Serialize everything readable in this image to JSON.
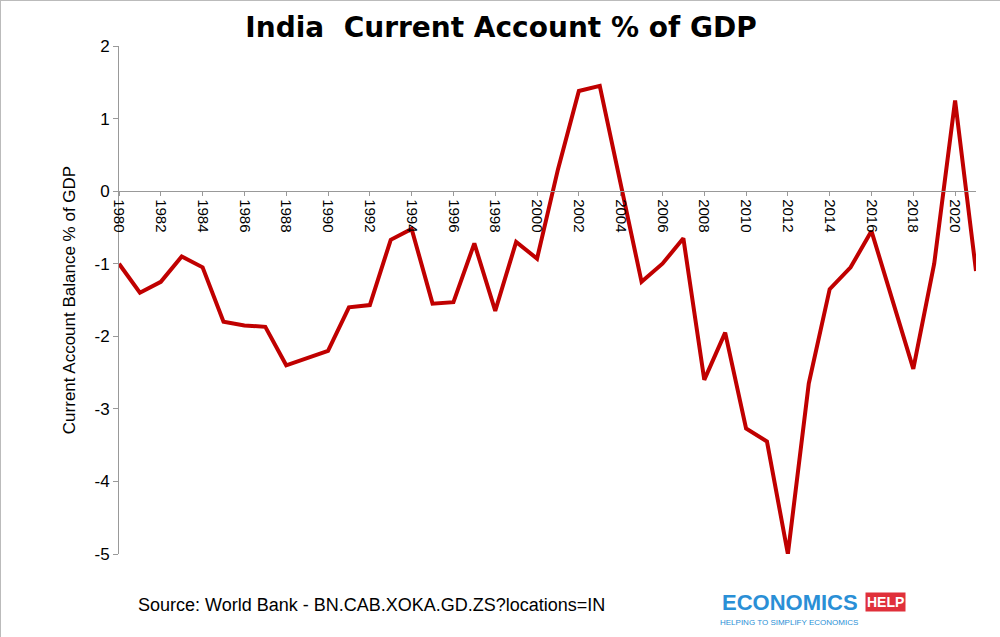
{
  "chart_data": {
    "type": "line",
    "title": "India  Current Account % of GDP",
    "y_label": "Current Account Balance % of GDP",
    "x": [
      1980,
      1981,
      1982,
      1983,
      1984,
      1985,
      1986,
      1987,
      1988,
      1989,
      1990,
      1991,
      1992,
      1993,
      1994,
      1995,
      1996,
      1997,
      1998,
      1999,
      2000,
      2001,
      2002,
      2003,
      2004,
      2005,
      2006,
      2007,
      2008,
      2009,
      2010,
      2011,
      2012,
      2013,
      2014,
      2015,
      2016,
      2017,
      2018,
      2019,
      2020,
      2021
    ],
    "values": [
      -1.0,
      -1.4,
      -1.25,
      -0.9,
      -1.05,
      -1.8,
      -1.85,
      -1.87,
      -2.4,
      -2.3,
      -2.2,
      -1.6,
      -1.57,
      -0.67,
      -0.52,
      -1.55,
      -1.53,
      -0.72,
      -1.65,
      -0.7,
      -0.93,
      0.3,
      1.38,
      1.45,
      0.1,
      -1.25,
      -1.0,
      -0.65,
      -2.6,
      -1.95,
      -3.27,
      -3.45,
      -5.0,
      -2.65,
      -1.35,
      -1.05,
      -0.55,
      -1.5,
      -2.45,
      -1.0,
      1.25,
      -1.1
    ],
    "color": "#c00000",
    "xlim": [
      1980,
      2021
    ],
    "xticks": [
      1980,
      1982,
      1984,
      1986,
      1988,
      1990,
      1992,
      1994,
      1996,
      1998,
      2000,
      2002,
      2004,
      2006,
      2008,
      2010,
      2012,
      2014,
      2016,
      2018,
      2020
    ],
    "ylim": [
      -5,
      2
    ],
    "yticks": [
      -5,
      -4,
      -3,
      -2,
      -1,
      0,
      1,
      2
    ],
    "grid": false,
    "annotations": [
      "Source: World Bank - BN.CAB.XOKA.GD.ZS?locations=IN",
      "ECONOMICS",
      "HELP",
      "HELPING TO SIMPLIFY ECONOMICS"
    ]
  }
}
